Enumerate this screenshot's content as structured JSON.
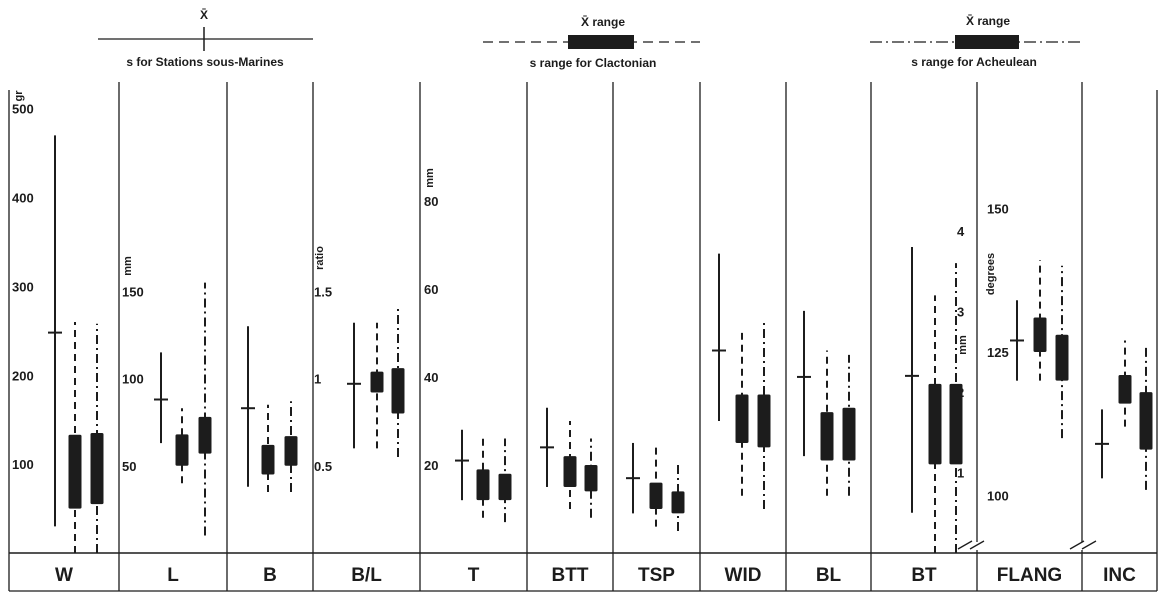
{
  "chart_data": {
    "type": "box",
    "legend": [
      {
        "mean_label": "X̄",
        "sd_label": "s for Stations sous-Marines",
        "style": "solid"
      },
      {
        "mean_label": "X̄ range",
        "sd_label": "s range for Clactonian",
        "style": "dashed"
      },
      {
        "mean_label": "X̄ range",
        "sd_label": "s range for Acheulean",
        "style": "dashdot"
      }
    ],
    "panels": [
      {
        "label": "W",
        "unit": "gr",
        "ticks": [
          100,
          200,
          300,
          400,
          500
        ],
        "ylim": [
          0,
          530
        ],
        "ssm": {
          "mean": 248,
          "sd_low": 30,
          "sd_high": 470
        },
        "clac": {
          "mean_low": 50,
          "mean_high": 133,
          "sd_low": 0,
          "sd_high": 260
        },
        "ach": {
          "mean_low": 55,
          "mean_high": 135,
          "sd_low": 0,
          "sd_high": 258
        }
      },
      {
        "label": "L",
        "unit": "mm",
        "ticks": [
          50,
          100,
          150
        ],
        "ylim": [
          0,
          270
        ],
        "ssm": {
          "mean": 88,
          "sd_low": 63,
          "sd_high": 115
        },
        "clac": {
          "mean_low": 50,
          "mean_high": 68,
          "sd_low": 40,
          "sd_high": 83
        },
        "ach": {
          "mean_low": 57,
          "mean_high": 78,
          "sd_low": 10,
          "sd_high": 155
        }
      },
      {
        "label": "B",
        "unit": "",
        "ticks": [],
        "ylim": [
          0,
          270
        ],
        "ssm": {
          "mean": 83,
          "sd_low": 38,
          "sd_high": 130
        },
        "clac": {
          "mean_low": 45,
          "mean_high": 62,
          "sd_low": 35,
          "sd_high": 85
        },
        "ach": {
          "mean_low": 50,
          "mean_high": 67,
          "sd_low": 35,
          "sd_high": 87
        }
      },
      {
        "label": "B/L",
        "unit": "ratio",
        "ticks": [
          0.5,
          1.0,
          1.5
        ],
        "ylim": [
          0,
          2.7
        ],
        "ssm": {
          "mean": 0.97,
          "sd_low": 0.6,
          "sd_high": 1.32
        },
        "clac": {
          "mean_low": 0.92,
          "mean_high": 1.04,
          "sd_low": 0.6,
          "sd_high": 1.32
        },
        "ach": {
          "mean_low": 0.8,
          "mean_high": 1.06,
          "sd_low": 0.55,
          "sd_high": 1.4
        }
      },
      {
        "label": "T",
        "unit": "mm",
        "ticks": [
          20,
          40,
          60,
          80
        ],
        "ylim": [
          0,
          107
        ],
        "ssm": {
          "mean": 21,
          "sd_low": 12,
          "sd_high": 28
        },
        "clac": {
          "mean_low": 12,
          "mean_high": 19,
          "sd_low": 8,
          "sd_high": 27
        },
        "ach": {
          "mean_low": 12,
          "mean_high": 18,
          "sd_low": 7,
          "sd_high": 26
        }
      },
      {
        "label": "BTT",
        "unit": "",
        "ticks": [],
        "ylim": [
          0,
          107
        ],
        "ssm": {
          "mean": 24,
          "sd_low": 15,
          "sd_high": 33
        },
        "clac": {
          "mean_low": 15,
          "mean_high": 22,
          "sd_low": 10,
          "sd_high": 30
        },
        "ach": {
          "mean_low": 14,
          "mean_high": 20,
          "sd_low": 8,
          "sd_high": 26
        }
      },
      {
        "label": "TSP",
        "unit": "",
        "ticks": [],
        "ylim": [
          0,
          107
        ],
        "ssm": {
          "mean": 17,
          "sd_low": 9,
          "sd_high": 25
        },
        "clac": {
          "mean_low": 10,
          "mean_high": 16,
          "sd_low": 6,
          "sd_high": 25
        },
        "ach": {
          "mean_low": 9,
          "mean_high": 14,
          "sd_low": 5,
          "sd_high": 20
        }
      },
      {
        "label": "WID",
        "unit": "",
        "ticks": [],
        "ylim": [
          0,
          107
        ],
        "ssm": {
          "mean": 46,
          "sd_low": 30,
          "sd_high": 68
        },
        "clac": {
          "mean_low": 25,
          "mean_high": 36,
          "sd_low": 13,
          "sd_high": 50
        },
        "ach": {
          "mean_low": 24,
          "mean_high": 36,
          "sd_low": 10,
          "sd_high": 53
        }
      },
      {
        "label": "BL",
        "unit": "",
        "ticks": [],
        "ylim": [
          0,
          107
        ],
        "ssm": {
          "mean": 40,
          "sd_low": 22,
          "sd_high": 55
        },
        "clac": {
          "mean_low": 21,
          "mean_high": 32,
          "sd_low": 13,
          "sd_high": 46
        },
        "ach": {
          "mean_low": 21,
          "mean_high": 33,
          "sd_low": 13,
          "sd_high": 45
        }
      },
      {
        "label": "BT",
        "unit": "mm",
        "ticks": [
          1,
          2,
          3,
          4
        ],
        "ylim": [
          0,
          5.85
        ],
        "ssm": {
          "mean": 2.2,
          "sd_low": 0.5,
          "sd_high": 3.8
        },
        "clac": {
          "mean_low": 1.1,
          "mean_high": 2.1,
          "sd_low": 0,
          "sd_high": 3.2
        },
        "ach": {
          "mean_low": 1.1,
          "mean_high": 2.1,
          "sd_low": 0,
          "sd_high": 3.6
        }
      },
      {
        "label": "FLANG",
        "unit": "degrees",
        "ticks": [
          100,
          125,
          150
        ],
        "ylim": [
          90,
          172
        ],
        "ssm": {
          "mean": 127,
          "sd_low": 120,
          "sd_high": 134
        },
        "clac": {
          "mean_low": 125,
          "mean_high": 131,
          "sd_low": 120,
          "sd_high": 141
        },
        "ach": {
          "mean_low": 120,
          "mean_high": 128,
          "sd_low": 110,
          "sd_high": 140
        }
      },
      {
        "label": "INC",
        "unit": "",
        "ticks": [],
        "ylim": [
          90,
          172
        ],
        "ssm": {
          "mean": 109,
          "sd_low": 103,
          "sd_high": 115
        },
        "clac": {
          "mean_low": 116,
          "mean_high": 121,
          "sd_low": 112,
          "sd_high": 127
        },
        "ach": {
          "mean_low": 108,
          "mean_high": 118,
          "sd_low": 101,
          "sd_high": 126
        }
      }
    ]
  }
}
